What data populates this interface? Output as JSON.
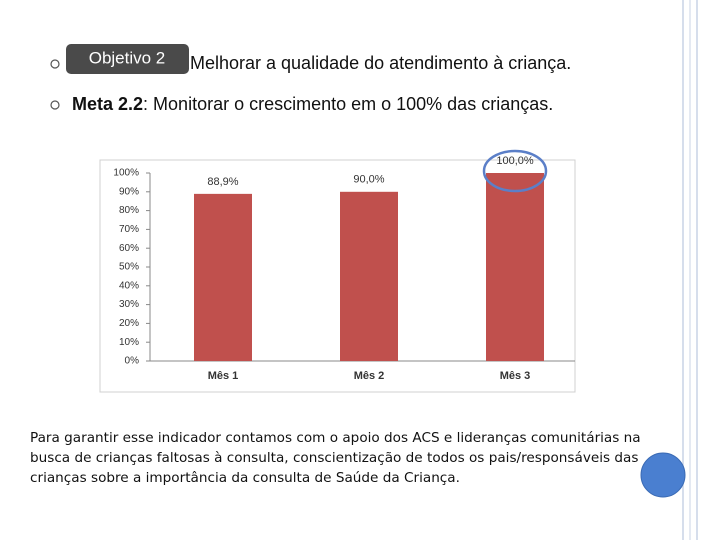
{
  "objective_label": "Objetivo 2",
  "objective_text": "Melhorar a qualidade do atendimento à criança.",
  "meta_label": "Meta 2.2",
  "meta_text": ": Monitorar o crescimento em o 100% das  crianças.",
  "paragraph": "Para garantir esse indicador contamos com o apoio dos ACS e lideranças comunitárias na busca de crianças faltosas à consulta, conscientização de todos os pais/responsáveis das crianças sobre a importância da consulta de Saúde da Criança.",
  "chart_data": {
    "type": "bar",
    "categories": [
      "Mês 1",
      "Mês 2",
      "Mês 3"
    ],
    "values": [
      88.9,
      90,
      100
    ],
    "value_labels": [
      "88,9%",
      "90,0%",
      "100,0%"
    ],
    "color": "#c0504d",
    "ylim": [
      0,
      100
    ],
    "yticks": [
      {
        "value": 0,
        "label": "0%"
      },
      {
        "value": 10,
        "label": "10%"
      },
      {
        "value": 20,
        "label": "20%"
      },
      {
        "value": 30,
        "label": "30%"
      },
      {
        "value": 40,
        "label": "40%"
      },
      {
        "value": 50,
        "label": "50%"
      },
      {
        "value": 60,
        "label": "60%"
      },
      {
        "value": 70,
        "label": "70%"
      },
      {
        "value": 80,
        "label": "80%"
      },
      {
        "value": 90,
        "label": "90%"
      },
      {
        "value": 100,
        "label": "100%"
      }
    ],
    "grid": false
  }
}
